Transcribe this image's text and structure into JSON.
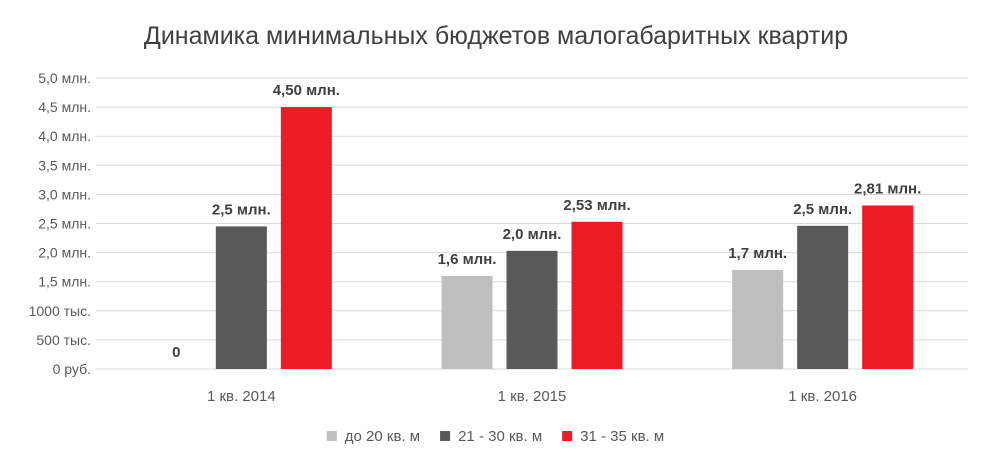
{
  "chart_data": {
    "type": "bar",
    "title": "Динамика минимальных бюджетов малогабаритных квартир",
    "categories": [
      "1 кв. 2014",
      "1 кв. 2015",
      "1 кв. 2016"
    ],
    "y_unit": "млн. руб.",
    "ylim": [
      0,
      5.0
    ],
    "y_tick_values": [
      0,
      0.5,
      1.0,
      1.5,
      2.0,
      2.5,
      3.0,
      3.5,
      4.0,
      4.5,
      5.0
    ],
    "y_tick_labels": [
      "0 руб.",
      "500 тыс.",
      "1000 тыс.",
      "1,5 млн.",
      "2,0 млн.",
      "2,5 млн.",
      "3,0 млн.",
      "3,5 млн.",
      "4,0 млн.",
      "4,5 млн.",
      "5,0 млн."
    ],
    "grid": true,
    "legend_position": "bottom",
    "series": [
      {
        "name": "до 20 кв. м",
        "color": "#bfbfbf",
        "values": [
          0,
          1.6,
          1.7
        ],
        "labels": [
          "0",
          "1,6 млн.",
          "1,7 млн."
        ]
      },
      {
        "name": "21 - 30 кв. м",
        "color": "#595959",
        "values": [
          2.45,
          2.03,
          2.46
        ],
        "labels": [
          "2,5 млн.",
          "2,0 млн.",
          "2,5 млн."
        ]
      },
      {
        "name": "31 - 35 кв. м",
        "color": "#ed1c24",
        "values": [
          4.5,
          2.53,
          2.81
        ],
        "labels": [
          "4,50 млн.",
          "2,53 млн.",
          "2,81 млн."
        ]
      }
    ]
  }
}
